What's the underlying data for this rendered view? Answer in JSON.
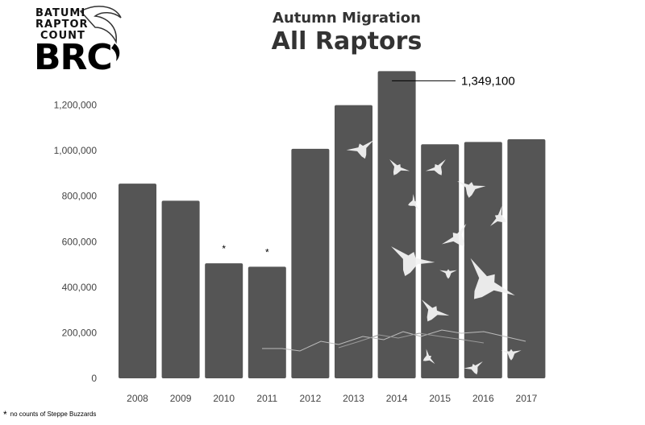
{
  "logo": {
    "line1": "BATUMI",
    "line2": "RAPTOR",
    "line3": "COUNT",
    "abbr": "BRC"
  },
  "footnote": {
    "marker": "*",
    "text": "no counts of Steppe Buzzards"
  },
  "colors": {
    "bar": "#555555",
    "axis_text": "#444444"
  },
  "chart_data": {
    "type": "bar",
    "title": "All Raptors",
    "subtitle": "Autumn Migration",
    "xlabel": "",
    "ylabel": "",
    "categories": [
      "2008",
      "2009",
      "2010",
      "2011",
      "2012",
      "2013",
      "2014",
      "2015",
      "2016",
      "2017"
    ],
    "values": [
      855000,
      780000,
      505000,
      490000,
      1008000,
      1200000,
      1349100,
      1028000,
      1038000,
      1050000
    ],
    "ylim": [
      0,
      1400000
    ],
    "yticks": [
      0,
      200000,
      400000,
      600000,
      800000,
      1000000,
      1200000
    ],
    "ytick_labels": [
      "0",
      "200,000",
      "400,000",
      "600,000",
      "800,000",
      "1,000,000",
      "1,200,000"
    ],
    "grid": false,
    "annotations": [
      {
        "category": "2014",
        "text": "1,349,100"
      },
      {
        "category": "2010",
        "text": "*"
      },
      {
        "category": "2011",
        "text": "*"
      }
    ]
  }
}
